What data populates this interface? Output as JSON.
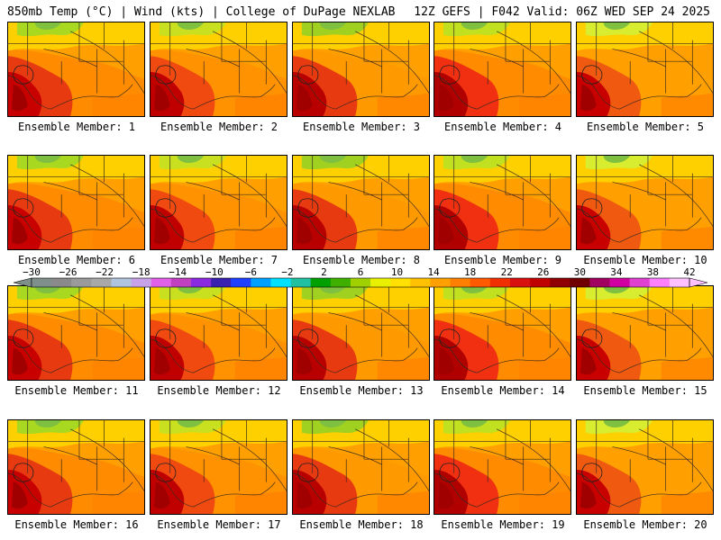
{
  "header": {
    "left": "850mb Temp (°C) | Wind (kts) | College of DuPage NEXLAB",
    "right": "12Z GEFS | F042 Valid: 06Z WED SEP 24 2025"
  },
  "colorbar": {
    "tick_labels": [
      "−30",
      "−26",
      "−22",
      "−18",
      "−14",
      "−10",
      "−6",
      "−2",
      "2",
      "6",
      "10",
      "14",
      "18",
      "22",
      "26",
      "30",
      "34",
      "38",
      "42"
    ],
    "colors": [
      "#7f8f8a",
      "#8a8a8a",
      "#9a9a9a",
      "#a8a8a8",
      "#b0c4de",
      "#c8a2e8",
      "#e060e8",
      "#c040c0",
      "#8a2be2",
      "#3a20b0",
      "#2040ff",
      "#00a0ff",
      "#00e0ff",
      "#20c0a0",
      "#00a000",
      "#40b000",
      "#a0d000",
      "#e8f000",
      "#ffe000",
      "#ffc000",
      "#ffa000",
      "#ff8000",
      "#ff5a00",
      "#f03000",
      "#d81010",
      "#c00000",
      "#900000",
      "#700000",
      "#a00060",
      "#d000a0",
      "#e040d0",
      "#ff80ff",
      "#ffc0ff"
    ]
  },
  "panels": [
    {
      "label": "Ensemble Member: 1"
    },
    {
      "label": "Ensemble Member: 2"
    },
    {
      "label": "Ensemble Member: 3"
    },
    {
      "label": "Ensemble Member: 4"
    },
    {
      "label": "Ensemble Member: 5"
    },
    {
      "label": "Ensemble Member: 6"
    },
    {
      "label": "Ensemble Member: 7"
    },
    {
      "label": "Ensemble Member: 8"
    },
    {
      "label": "Ensemble Member: 9"
    },
    {
      "label": "Ensemble Member: 10"
    },
    {
      "label": "Ensemble Member: 11"
    },
    {
      "label": "Ensemble Member: 12"
    },
    {
      "label": "Ensemble Member: 13"
    },
    {
      "label": "Ensemble Member: 14"
    },
    {
      "label": "Ensemble Member: 15"
    },
    {
      "label": "Ensemble Member: 16"
    },
    {
      "label": "Ensemble Member: 17"
    },
    {
      "label": "Ensemble Member: 18"
    },
    {
      "label": "Ensemble Member: 19"
    },
    {
      "label": "Ensemble Member: 20"
    }
  ]
}
